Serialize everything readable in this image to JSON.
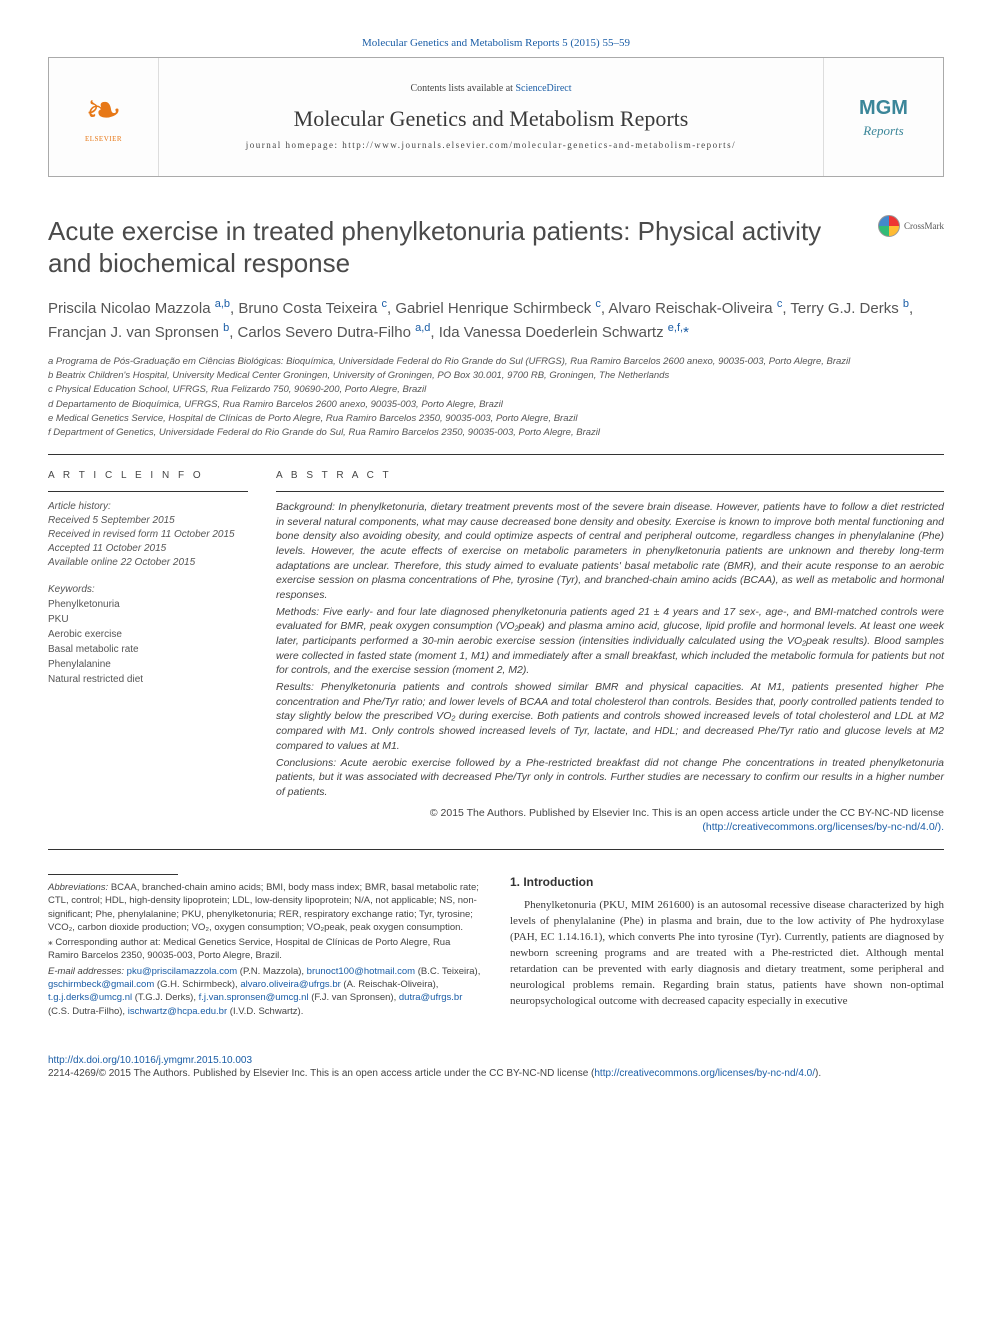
{
  "top_link_label": "Molecular Genetics and Metabolism Reports 5 (2015) 55–59",
  "masthead": {
    "contents_prefix": "Contents lists available at ",
    "contents_link": "ScienceDirect",
    "journal_name": "Molecular Genetics and Metabolism Reports",
    "homepage_label": "journal homepage: http://www.journals.elsevier.com/molecular-genetics-and-metabolism-reports/",
    "elsevier_text": "ELSEVIER",
    "mgm_top": "MGM",
    "mgm_bottom": "Reports"
  },
  "article_title": "Acute exercise in treated phenylketonuria patients: Physical activity and biochemical response",
  "crossmark_label": "CrossMark",
  "authors_html": "Priscila Nicolao Mazzola <sup class='aff-link'>a,b</sup>, Bruno Costa Teixeira <sup class='aff-link'>c</sup>, Gabriel Henrique Schirmbeck <sup class='aff-link'>c</sup>, Alvaro Reischak-Oliveira <sup class='aff-link'>c</sup>, Terry G.J. Derks <sup class='aff-link'>b</sup>, Francjan J. van Spronsen <sup class='aff-link'>b</sup>, Carlos Severo Dutra-Filho <sup class='aff-link'>a,d</sup>, Ida Vanessa Doederlein Schwartz <sup class='aff-link'>e,f,</sup><span class='star'>*</span>",
  "affiliations": [
    "a Programa de Pós-Graduação em Ciências Biológicas: Bioquímica, Universidade Federal do Rio Grande do Sul (UFRGS), Rua Ramiro Barcelos 2600 anexo, 90035-003, Porto Alegre, Brazil",
    "b Beatrix Children's Hospital, University Medical Center Groningen, University of Groningen, PO Box 30.001, 9700 RB, Groningen, The Netherlands",
    "c Physical Education School, UFRGS, Rua Felizardo 750, 90690-200, Porto Alegre, Brazil",
    "d Departamento de Bioquímica, UFRGS, Rua Ramiro Barcelos 2600 anexo, 90035-003, Porto Alegre, Brazil",
    "e Medical Genetics Service, Hospital de Clínicas de Porto Alegre, Rua Ramiro Barcelos 2350, 90035-003, Porto Alegre, Brazil",
    "f Department of Genetics, Universidade Federal do Rio Grande do Sul, Rua Ramiro Barcelos 2350, 90035-003, Porto Alegre, Brazil"
  ],
  "article_info_head": "A R T I C L E   I N F O",
  "abstract_head": "A B S T R A C T",
  "history": {
    "label": "Article history:",
    "received": "Received 5 September 2015",
    "revised": "Received in revised form 11 October 2015",
    "accepted": "Accepted 11 October 2015",
    "online": "Available online 22 October 2015"
  },
  "keywords_label": "Keywords:",
  "keywords": [
    "Phenylketonuria",
    "PKU",
    "Aerobic exercise",
    "Basal metabolic rate",
    "Phenylalanine",
    "Natural restricted diet"
  ],
  "abstract": {
    "background": "Background: In phenylketonuria, dietary treatment prevents most of the severe brain disease. However, patients have to follow a diet restricted in several natural components, what may cause decreased bone density and obesity. Exercise is known to improve both mental functioning and bone density also avoiding obesity, and could optimize aspects of central and peripheral outcome, regardless changes in phenylalanine (Phe) levels. However, the acute effects of exercise on metabolic parameters in phenylketonuria patients are unknown and thereby long-term adaptations are unclear. Therefore, this study aimed to evaluate patients' basal metabolic rate (BMR), and their acute response to an aerobic exercise session on plasma concentrations of Phe, tyrosine (Tyr), and branched-chain amino acids (BCAA), as well as metabolic and hormonal responses.",
    "methods": "Methods: Five early- and four late diagnosed phenylketonuria patients aged 21 ± 4 years and 17 sex-, age-, and BMI-matched controls were evaluated for BMR, peak oxygen consumption (VO₂peak) and plasma amino acid, glucose, lipid profile and hormonal levels. At least one week later, participants performed a 30-min aerobic exercise session (intensities individually calculated using the VO₂peak results). Blood samples were collected in fasted state (moment 1, M1) and immediately after a small breakfast, which included the metabolic formula for patients but not for controls, and the exercise session (moment 2, M2).",
    "results": "Results: Phenylketonuria patients and controls showed similar BMR and physical capacities. At M1, patients presented higher Phe concentration and Phe/Tyr ratio; and lower levels of BCAA and total cholesterol than controls. Besides that, poorly controlled patients tended to stay slightly below the prescribed VO₂ during exercise. Both patients and controls showed increased levels of total cholesterol and LDL at M2 compared with M1. Only controls showed increased levels of Tyr, lactate, and HDL; and decreased Phe/Tyr ratio and glucose levels at M2 compared to values at M1.",
    "conclusions": "Conclusions: Acute aerobic exercise followed by a Phe-restricted breakfast did not change Phe concentrations in treated phenylketonuria patients, but it was associated with decreased Phe/Tyr only in controls. Further studies are necessary to confirm our results in a higher number of patients.",
    "copyright": "© 2015 The Authors. Published by Elsevier Inc. This is an open access article under the CC BY-NC-ND license",
    "license_url_label": "(http://creativecommons.org/licenses/by-nc-nd/4.0/)."
  },
  "abbrev_label": "Abbreviations:",
  "abbrev_text": " BCAA, branched-chain amino acids; BMI, body mass index; BMR, basal metabolic rate; CTL, control; HDL, high-density lipoprotein; LDL, low-density lipoprotein; N/A, not applicable; NS, non-significant; Phe, phenylalanine; PKU, phenylketonuria; RER, respiratory exchange ratio; Tyr, tyrosine; VCO₂, carbon dioxide production; VO₂, oxygen consumption; VO₂peak, peak oxygen consumption.",
  "corr_label": "⁎ Corresponding author at: Medical Genetics Service, Hospital de Clínicas de Porto Alegre, Rua Ramiro Barcelos 2350, 90035-003, Porto Alegre, Brazil.",
  "emails_label": "E-mail addresses: ",
  "emails": [
    {
      "addr": "pku@priscilamazzola.com",
      "who": "(P.N. Mazzola), "
    },
    {
      "addr": "brunoct100@hotmail.com",
      "who": "(B.C. Teixeira), "
    },
    {
      "addr": "gschirmbeck@gmail.com",
      "who": "(G.H. Schirmbeck), "
    },
    {
      "addr": "alvaro.oliveira@ufrgs.br",
      "who": "(A. Reischak-Oliveira), "
    },
    {
      "addr": "t.g.j.derks@umcg.nl",
      "who": "(T.G.J. Derks), "
    },
    {
      "addr": "f.j.van.spronsen@umcg.nl",
      "who": "(F.J. van Spronsen), "
    },
    {
      "addr": "dutra@ufrgs.br",
      "who": "(C.S. Dutra-Filho), "
    },
    {
      "addr": "ischwartz@hcpa.edu.br",
      "who": "(I.V.D. Schwartz)."
    }
  ],
  "intro_head": "1. Introduction",
  "intro_body": "Phenylketonuria (PKU, MIM 261600) is an autosomal recessive disease characterized by high levels of phenylalanine (Phe) in plasma and brain, due to the low activity of Phe hydroxylase (PAH, EC 1.14.16.1), which converts Phe into tyrosine (Tyr). Currently, patients are diagnosed by newborn screening programs and are treated with a Phe-restricted diet. Although mental retardation can be prevented with early diagnosis and dietary treatment, some peripheral and neurological problems remain. Regarding brain status, patients have shown non-optimal neuropsychological outcome with decreased capacity especially in executive",
  "doi_link": "http://dx.doi.org/10.1016/j.ymgmr.2015.10.003",
  "issn_line": "2214-4269/© 2015 The Authors. Published by Elsevier Inc. This is an open access article under the CC BY-NC-ND license (",
  "issn_license_link": "http://creativecommons.org/licenses/by-nc-nd/4.0/",
  "issn_tail": ")."
}
